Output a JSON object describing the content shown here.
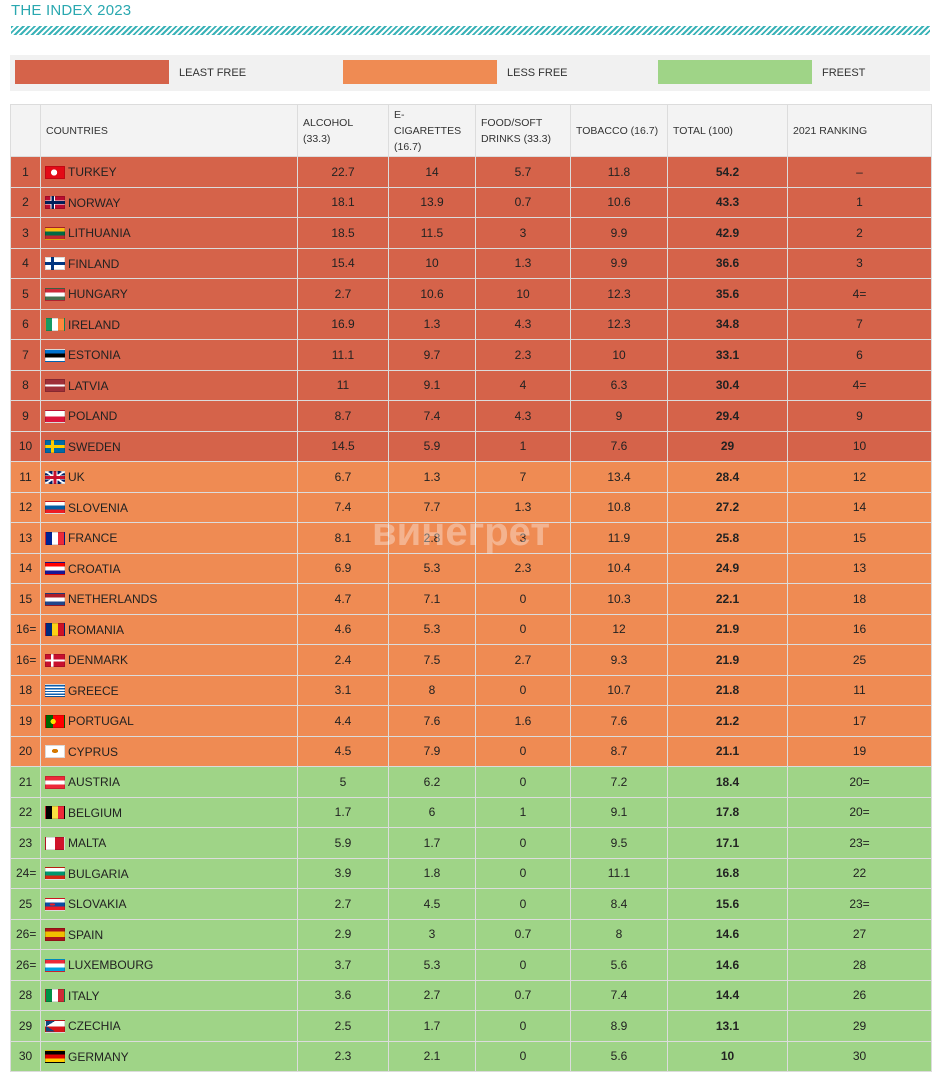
{
  "title": "THE INDEX 2023",
  "legend": [
    {
      "label": "LEAST FREE",
      "color": "#d5634a"
    },
    {
      "label": "LESS FREE",
      "color": "#ef8b53"
    },
    {
      "label": "FREEST",
      "color": "#9fd487"
    }
  ],
  "headers": {
    "rank": "",
    "countries": "COUNTRIES",
    "alcohol": "ALCOHOL (33.3)",
    "ecig": "E-CIGARETTES (16.7)",
    "food": "FOOD/SOFT DRINKS (33.3)",
    "tobacco": "TOBACCO (16.7)",
    "total": "TOTAL (100)",
    "ranking2021": "2021 RANKING"
  },
  "watermark": "винегрет",
  "rows": [
    {
      "rank": "1",
      "country": "TURKEY",
      "alcohol": "22.7",
      "ecig": "14",
      "food": "5.7",
      "tobacco": "11.8",
      "total": "54.2",
      "r2021": "–",
      "group": "least",
      "flag": "tr-flag"
    },
    {
      "rank": "2",
      "country": "NORWAY",
      "alcohol": "18.1",
      "ecig": "13.9",
      "food": "0.7",
      "tobacco": "10.6",
      "total": "43.3",
      "r2021": "1",
      "group": "least",
      "flag": "no-flag"
    },
    {
      "rank": "3",
      "country": "LITHUANIA",
      "alcohol": "18.5",
      "ecig": "11.5",
      "food": "3",
      "tobacco": "9.9",
      "total": "42.9",
      "r2021": "2",
      "group": "least",
      "flag": "lt-flag"
    },
    {
      "rank": "4",
      "country": "FINLAND",
      "alcohol": "15.4",
      "ecig": "10",
      "food": "1.3",
      "tobacco": "9.9",
      "total": "36.6",
      "r2021": "3",
      "group": "least",
      "flag": "fi-flag"
    },
    {
      "rank": "5",
      "country": "HUNGARY",
      "alcohol": "2.7",
      "ecig": "10.6",
      "food": "10",
      "tobacco": "12.3",
      "total": "35.6",
      "r2021": "4=",
      "group": "least",
      "flag": "hu-flag"
    },
    {
      "rank": "6",
      "country": "IRELAND",
      "alcohol": "16.9",
      "ecig": "1.3",
      "food": "4.3",
      "tobacco": "12.3",
      "total": "34.8",
      "r2021": "7",
      "group": "least",
      "flag": "ie-flag"
    },
    {
      "rank": "7",
      "country": "ESTONIA",
      "alcohol": "11.1",
      "ecig": "9.7",
      "food": "2.3",
      "tobacco": "10",
      "total": "33.1",
      "r2021": "6",
      "group": "least",
      "flag": "ee-flag"
    },
    {
      "rank": "8",
      "country": "LATVIA",
      "alcohol": "11",
      "ecig": "9.1",
      "food": "4",
      "tobacco": "6.3",
      "total": "30.4",
      "r2021": "4=",
      "group": "least",
      "flag": "lv-flag"
    },
    {
      "rank": "9",
      "country": "POLAND",
      "alcohol": "8.7",
      "ecig": "7.4",
      "food": "4.3",
      "tobacco": "9",
      "total": "29.4",
      "r2021": "9",
      "group": "least",
      "flag": "pl-flag"
    },
    {
      "rank": "10",
      "country": "SWEDEN",
      "alcohol": "14.5",
      "ecig": "5.9",
      "food": "1",
      "tobacco": "7.6",
      "total": "29",
      "r2021": "10",
      "group": "least",
      "flag": "se-flag"
    },
    {
      "rank": "11",
      "country": "UK",
      "alcohol": "6.7",
      "ecig": "1.3",
      "food": "7",
      "tobacco": "13.4",
      "total": "28.4",
      "r2021": "12",
      "group": "less",
      "flag": "uk-flag"
    },
    {
      "rank": "12",
      "country": "SLOVENIA",
      "alcohol": "7.4",
      "ecig": "7.7",
      "food": "1.3",
      "tobacco": "10.8",
      "total": "27.2",
      "r2021": "14",
      "group": "less",
      "flag": "si-flag"
    },
    {
      "rank": "13",
      "country": "FRANCE",
      "alcohol": "8.1",
      "ecig": "2.8",
      "food": "3",
      "tobacco": "11.9",
      "total": "25.8",
      "r2021": "15",
      "group": "less",
      "flag": "fr-flag"
    },
    {
      "rank": "14",
      "country": "CROATIA",
      "alcohol": "6.9",
      "ecig": "5.3",
      "food": "2.3",
      "tobacco": "10.4",
      "total": "24.9",
      "r2021": "13",
      "group": "less",
      "flag": "hr-flag"
    },
    {
      "rank": "15",
      "country": "NETHERLANDS",
      "alcohol": "4.7",
      "ecig": "7.1",
      "food": "0",
      "tobacco": "10.3",
      "total": "22.1",
      "r2021": "18",
      "group": "less",
      "flag": "nl-flag"
    },
    {
      "rank": "16=",
      "country": "ROMANIA",
      "alcohol": "4.6",
      "ecig": "5.3",
      "food": "0",
      "tobacco": "12",
      "total": "21.9",
      "r2021": "16",
      "group": "less",
      "flag": "ro-flag"
    },
    {
      "rank": "16=",
      "country": "DENMARK",
      "alcohol": "2.4",
      "ecig": "7.5",
      "food": "2.7",
      "tobacco": "9.3",
      "total": "21.9",
      "r2021": "25",
      "group": "less",
      "flag": "dk-flag"
    },
    {
      "rank": "18",
      "country": "GREECE",
      "alcohol": "3.1",
      "ecig": "8",
      "food": "0",
      "tobacco": "10.7",
      "total": "21.8",
      "r2021": "11",
      "group": "less",
      "flag": "gr-flag"
    },
    {
      "rank": "19",
      "country": "PORTUGAL",
      "alcohol": "4.4",
      "ecig": "7.6",
      "food": "1.6",
      "tobacco": "7.6",
      "total": "21.2",
      "r2021": "17",
      "group": "less",
      "flag": "pt-flag"
    },
    {
      "rank": "20",
      "country": "CYPRUS",
      "alcohol": "4.5",
      "ecig": "7.9",
      "food": "0",
      "tobacco": "8.7",
      "total": "21.1",
      "r2021": "19",
      "group": "less",
      "flag": "cy-flag"
    },
    {
      "rank": "21",
      "country": "AUSTRIA",
      "alcohol": "5",
      "ecig": "6.2",
      "food": "0",
      "tobacco": "7.2",
      "total": "18.4",
      "r2021": "20=",
      "group": "freest",
      "flag": "at-flag"
    },
    {
      "rank": "22",
      "country": "BELGIUM",
      "alcohol": "1.7",
      "ecig": "6",
      "food": "1",
      "tobacco": "9.1",
      "total": "17.8",
      "r2021": "20=",
      "group": "freest",
      "flag": "be-flag"
    },
    {
      "rank": "23",
      "country": "MALTA",
      "alcohol": "5.9",
      "ecig": "1.7",
      "food": "0",
      "tobacco": "9.5",
      "total": "17.1",
      "r2021": "23=",
      "group": "freest",
      "flag": "mt-flag"
    },
    {
      "rank": "24=",
      "country": "BULGARIA",
      "alcohol": "3.9",
      "ecig": "1.8",
      "food": "0",
      "tobacco": "11.1",
      "total": "16.8",
      "r2021": "22",
      "group": "freest",
      "flag": "bg-flag"
    },
    {
      "rank": "25",
      "country": "SLOVAKIA",
      "alcohol": "2.7",
      "ecig": "4.5",
      "food": "0",
      "tobacco": "8.4",
      "total": "15.6",
      "r2021": "23=",
      "group": "freest",
      "flag": "sk-flag"
    },
    {
      "rank": "26=",
      "country": "SPAIN",
      "alcohol": "2.9",
      "ecig": "3",
      "food": "0.7",
      "tobacco": "8",
      "total": "14.6",
      "r2021": "27",
      "group": "freest",
      "flag": "es-flag"
    },
    {
      "rank": "26=",
      "country": "LUXEMBOURG",
      "alcohol": "3.7",
      "ecig": "5.3",
      "food": "0",
      "tobacco": "5.6",
      "total": "14.6",
      "r2021": "28",
      "group": "freest",
      "flag": "lu-flag"
    },
    {
      "rank": "28",
      "country": "ITALY",
      "alcohol": "3.6",
      "ecig": "2.7",
      "food": "0.7",
      "tobacco": "7.4",
      "total": "14.4",
      "r2021": "26",
      "group": "freest",
      "flag": "it-flag"
    },
    {
      "rank": "29",
      "country": "CZECHIA",
      "alcohol": "2.5",
      "ecig": "1.7",
      "food": "0",
      "tobacco": "8.9",
      "total": "13.1",
      "r2021": "29",
      "group": "freest",
      "flag": "cz-flag"
    },
    {
      "rank": "30",
      "country": "GERMANY",
      "alcohol": "2.3",
      "ecig": "2.1",
      "food": "0",
      "tobacco": "5.6",
      "total": "10",
      "r2021": "30",
      "group": "freest",
      "flag": "de-flag"
    }
  ]
}
